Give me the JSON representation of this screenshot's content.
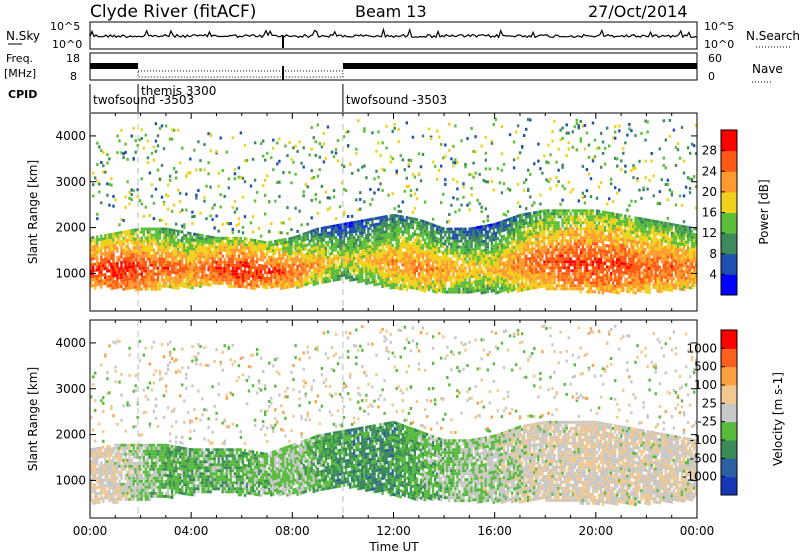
{
  "header": {
    "title": "Clyde River (fitACF)",
    "beam": "Beam 13",
    "date": "27/Oct/2014"
  },
  "strips": {
    "nsky_label": "N.Sky",
    "nsky_ticks": [
      "10^5",
      "10^0"
    ],
    "nsearch_label": "N.Search",
    "nsearch_ticks": [
      "10^5",
      "10^0"
    ],
    "freq_label": "Freq.",
    "freq_unit": "[MHz]",
    "freq_ticks": [
      "18",
      "8"
    ],
    "nave_label": "Nave",
    "nave_ticks": [
      "60",
      "0"
    ],
    "cpid_label": "CPID"
  },
  "cpid_segments": [
    {
      "label": "twofsound -3503",
      "start_hour": 0.0
    },
    {
      "label": "themis 3300",
      "start_hour": 1.9
    },
    {
      "label": "twofsound -3503",
      "start_hour": 10.0
    }
  ],
  "colors": {
    "power_scale": [
      "#0000ff",
      "#1f4fb0",
      "#3d8a5c",
      "#5cbf3a",
      "#f0d21e",
      "#ff9b2e",
      "#ff5a14",
      "#ff0000"
    ],
    "velocity_scale": [
      "#1836b8",
      "#2d5fa3",
      "#3a8a5a",
      "#58bb3e",
      "#c8c8c8",
      "#f0c890",
      "#ffa040",
      "#ff6020",
      "#ff0000"
    ]
  },
  "chart_data": [
    {
      "type": "heatmap",
      "panel": "power",
      "xlabel": "",
      "ylabel": "Slant Range [km]",
      "xlim": [
        0,
        24
      ],
      "ylim": [
        180,
        4500
      ],
      "yticks": [
        "1000",
        "2000",
        "3000",
        "4000"
      ],
      "colorbar": {
        "label": "Power [dB]",
        "range": [
          0,
          32
        ],
        "ticks": [
          "4",
          "8",
          "12",
          "16",
          "20",
          "24",
          "28"
        ]
      },
      "main_band": {
        "hours": [
          0,
          1,
          2,
          3,
          4,
          5,
          6,
          7,
          8,
          9,
          10,
          11,
          12,
          13,
          14,
          15,
          16,
          17,
          18,
          19,
          20,
          21,
          22,
          23,
          24
        ],
        "lower_km": [
          700,
          700,
          650,
          700,
          700,
          800,
          700,
          700,
          700,
          800,
          900,
          800,
          700,
          650,
          600,
          600,
          600,
          650,
          700,
          650,
          600,
          600,
          600,
          650,
          700
        ],
        "upper_km": [
          1800,
          1900,
          2000,
          2000,
          1900,
          1800,
          1800,
          1700,
          1800,
          2000,
          2100,
          2200,
          2300,
          2200,
          2000,
          2000,
          2100,
          2300,
          2400,
          2400,
          2400,
          2300,
          2200,
          2100,
          2000
        ],
        "peak_db": [
          28,
          30,
          28,
          26,
          24,
          28,
          30,
          28,
          26,
          22,
          18,
          20,
          22,
          24,
          22,
          20,
          20,
          24,
          26,
          28,
          28,
          28,
          26,
          26,
          24
        ]
      }
    },
    {
      "type": "heatmap",
      "panel": "velocity",
      "xlabel": "Time UT",
      "ylabel": "Slant Range [km]",
      "xlim": [
        0,
        24
      ],
      "ylim": [
        180,
        4500
      ],
      "xticks": [
        "00:00",
        "04:00",
        "08:00",
        "12:00",
        "16:00",
        "20:00",
        "00:00"
      ],
      "yticks": [
        "1000",
        "2000",
        "3000",
        "4000"
      ],
      "colorbar": {
        "label": "Velocity [m s-1]",
        "range": [
          -1200,
          1200
        ],
        "ticks": [
          "1000",
          "500",
          "100",
          "25",
          "-25",
          "-100",
          "-500",
          "-1000"
        ]
      },
      "main_band": {
        "hours": [
          0,
          1,
          2,
          3,
          4,
          5,
          6,
          7,
          8,
          9,
          10,
          11,
          12,
          13,
          14,
          15,
          16,
          17,
          18,
          19,
          20,
          21,
          22,
          23,
          24
        ],
        "lower_km": [
          500,
          550,
          600,
          650,
          700,
          800,
          700,
          700,
          700,
          800,
          900,
          800,
          700,
          600,
          600,
          550,
          550,
          550,
          600,
          550,
          500,
          500,
          500,
          550,
          600
        ],
        "upper_km": [
          1700,
          1800,
          1800,
          1800,
          1700,
          1700,
          1700,
          1600,
          1800,
          2000,
          2100,
          2200,
          2300,
          2100,
          1900,
          1900,
          2000,
          2200,
          2300,
          2300,
          2300,
          2200,
          2100,
          2000,
          1900
        ],
        "velocity_ms": [
          100,
          100,
          -100,
          -300,
          -300,
          -300,
          -300,
          -200,
          -100,
          -300,
          -500,
          -500,
          -500,
          -300,
          -200,
          -100,
          -100,
          50,
          80,
          100,
          120,
          100,
          80,
          100,
          100
        ]
      }
    }
  ]
}
